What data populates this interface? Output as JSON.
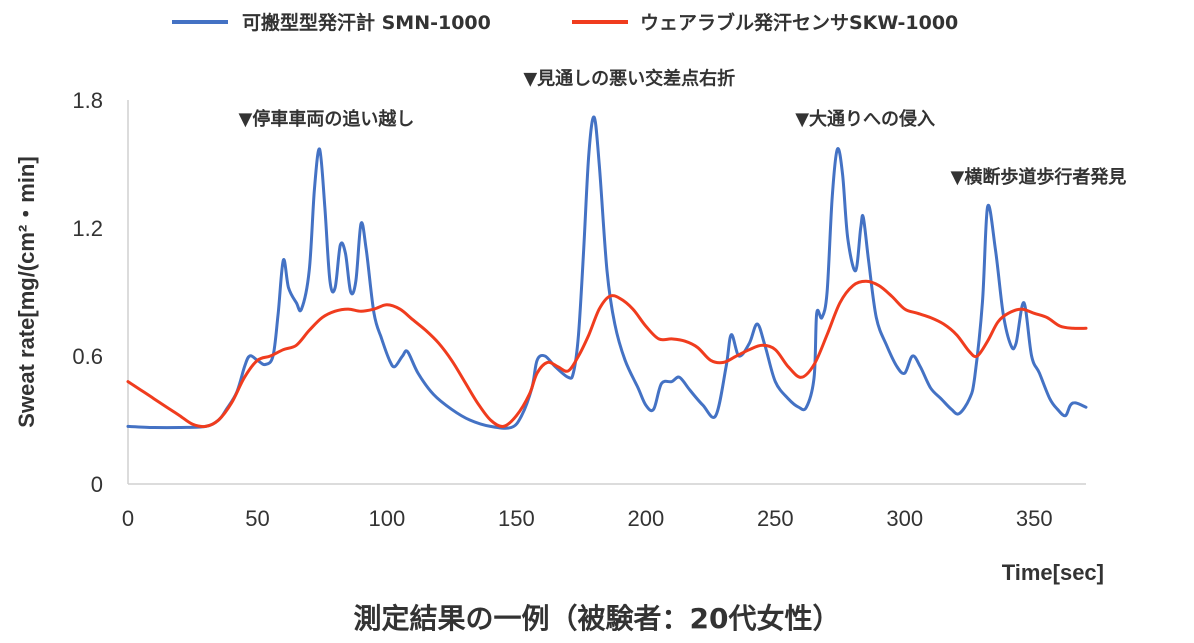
{
  "chart_data": {
    "type": "line",
    "caption": "測定結果の一例（被験者：20代女性）",
    "xlabel": "Time[sec]",
    "ylabel": "Sweat rate[mg/(cm²・min]",
    "xlim": [
      0,
      370
    ],
    "ylim": [
      0,
      1.8
    ],
    "x_ticks": [
      0,
      50,
      100,
      150,
      200,
      250,
      300,
      350
    ],
    "y_ticks": [
      0,
      0.6,
      1.2,
      1.8
    ],
    "y_tick_labels": [
      "0",
      "0.6",
      "1.2",
      "1.8"
    ],
    "legend_position": "top",
    "series": [
      {
        "name": "可搬型型発汗計 SMN-1000",
        "color": "#4472C4",
        "points": [
          [
            0,
            0.27
          ],
          [
            10,
            0.265
          ],
          [
            20,
            0.265
          ],
          [
            30,
            0.27
          ],
          [
            35,
            0.3
          ],
          [
            38,
            0.35
          ],
          [
            42,
            0.43
          ],
          [
            45,
            0.55
          ],
          [
            47,
            0.6
          ],
          [
            50,
            0.58
          ],
          [
            53,
            0.56
          ],
          [
            56,
            0.6
          ],
          [
            58,
            0.8
          ],
          [
            60,
            1.05
          ],
          [
            62,
            0.92
          ],
          [
            65,
            0.85
          ],
          [
            67,
            0.82
          ],
          [
            70,
            1.0
          ],
          [
            72,
            1.38
          ],
          [
            74,
            1.57
          ],
          [
            76,
            1.3
          ],
          [
            78,
            0.95
          ],
          [
            80,
            0.92
          ],
          [
            82,
            1.12
          ],
          [
            84,
            1.08
          ],
          [
            86,
            0.9
          ],
          [
            88,
            0.95
          ],
          [
            90,
            1.22
          ],
          [
            92,
            1.1
          ],
          [
            95,
            0.8
          ],
          [
            98,
            0.68
          ],
          [
            101,
            0.58
          ],
          [
            103,
            0.55
          ],
          [
            106,
            0.6
          ],
          [
            108,
            0.62
          ],
          [
            112,
            0.52
          ],
          [
            118,
            0.42
          ],
          [
            125,
            0.35
          ],
          [
            132,
            0.3
          ],
          [
            140,
            0.27
          ],
          [
            148,
            0.265
          ],
          [
            152,
            0.32
          ],
          [
            156,
            0.45
          ],
          [
            158,
            0.58
          ],
          [
            161,
            0.6
          ],
          [
            165,
            0.55
          ],
          [
            170,
            0.5
          ],
          [
            172,
            0.52
          ],
          [
            174,
            0.7
          ],
          [
            176,
            1.1
          ],
          [
            178,
            1.55
          ],
          [
            180,
            1.72
          ],
          [
            182,
            1.5
          ],
          [
            185,
            1.0
          ],
          [
            188,
            0.75
          ],
          [
            192,
            0.58
          ],
          [
            197,
            0.45
          ],
          [
            200,
            0.37
          ],
          [
            203,
            0.35
          ],
          [
            206,
            0.47
          ],
          [
            210,
            0.48
          ],
          [
            213,
            0.5
          ],
          [
            217,
            0.44
          ],
          [
            222,
            0.37
          ],
          [
            227,
            0.32
          ],
          [
            231,
            0.55
          ],
          [
            233,
            0.7
          ],
          [
            236,
            0.6
          ],
          [
            240,
            0.66
          ],
          [
            243,
            0.75
          ],
          [
            246,
            0.65
          ],
          [
            250,
            0.48
          ],
          [
            255,
            0.4
          ],
          [
            259,
            0.36
          ],
          [
            262,
            0.36
          ],
          [
            265,
            0.5
          ],
          [
            266,
            0.8
          ],
          [
            268,
            0.78
          ],
          [
            270,
            0.9
          ],
          [
            272,
            1.35
          ],
          [
            274,
            1.57
          ],
          [
            276,
            1.45
          ],
          [
            278,
            1.15
          ],
          [
            281,
            1.0
          ],
          [
            283,
            1.2
          ],
          [
            284,
            1.25
          ],
          [
            286,
            1.05
          ],
          [
            289,
            0.78
          ],
          [
            293,
            0.65
          ],
          [
            297,
            0.55
          ],
          [
            300,
            0.52
          ],
          [
            303,
            0.6
          ],
          [
            306,
            0.55
          ],
          [
            310,
            0.45
          ],
          [
            314,
            0.4
          ],
          [
            318,
            0.35
          ],
          [
            321,
            0.33
          ],
          [
            325,
            0.4
          ],
          [
            327,
            0.5
          ],
          [
            330,
            0.85
          ],
          [
            332,
            1.3
          ],
          [
            335,
            1.1
          ],
          [
            338,
            0.8
          ],
          [
            341,
            0.65
          ],
          [
            343,
            0.66
          ],
          [
            346,
            0.85
          ],
          [
            349,
            0.6
          ],
          [
            352,
            0.52
          ],
          [
            356,
            0.4
          ],
          [
            359,
            0.35
          ],
          [
            362,
            0.32
          ],
          [
            364,
            0.37
          ],
          [
            366,
            0.38
          ],
          [
            370,
            0.36
          ]
        ]
      },
      {
        "name": "ウェアラブル発汗センサSKW-1000",
        "color": "#F03C1E",
        "points": [
          [
            0,
            0.48
          ],
          [
            5,
            0.44
          ],
          [
            10,
            0.4
          ],
          [
            15,
            0.36
          ],
          [
            20,
            0.32
          ],
          [
            25,
            0.28
          ],
          [
            30,
            0.27
          ],
          [
            35,
            0.3
          ],
          [
            40,
            0.38
          ],
          [
            45,
            0.5
          ],
          [
            50,
            0.58
          ],
          [
            55,
            0.6
          ],
          [
            60,
            0.63
          ],
          [
            65,
            0.65
          ],
          [
            70,
            0.72
          ],
          [
            75,
            0.78
          ],
          [
            80,
            0.81
          ],
          [
            85,
            0.82
          ],
          [
            90,
            0.81
          ],
          [
            95,
            0.82
          ],
          [
            100,
            0.84
          ],
          [
            105,
            0.82
          ],
          [
            110,
            0.77
          ],
          [
            115,
            0.72
          ],
          [
            120,
            0.66
          ],
          [
            125,
            0.58
          ],
          [
            130,
            0.48
          ],
          [
            135,
            0.38
          ],
          [
            140,
            0.3
          ],
          [
            145,
            0.27
          ],
          [
            150,
            0.32
          ],
          [
            155,
            0.42
          ],
          [
            158,
            0.52
          ],
          [
            162,
            0.57
          ],
          [
            166,
            0.55
          ],
          [
            170,
            0.53
          ],
          [
            174,
            0.6
          ],
          [
            178,
            0.7
          ],
          [
            182,
            0.82
          ],
          [
            186,
            0.88
          ],
          [
            190,
            0.87
          ],
          [
            195,
            0.82
          ],
          [
            200,
            0.74
          ],
          [
            205,
            0.68
          ],
          [
            210,
            0.68
          ],
          [
            215,
            0.67
          ],
          [
            220,
            0.64
          ],
          [
            225,
            0.58
          ],
          [
            230,
            0.57
          ],
          [
            235,
            0.6
          ],
          [
            240,
            0.63
          ],
          [
            245,
            0.65
          ],
          [
            250,
            0.63
          ],
          [
            255,
            0.55
          ],
          [
            260,
            0.5
          ],
          [
            265,
            0.56
          ],
          [
            270,
            0.7
          ],
          [
            275,
            0.85
          ],
          [
            280,
            0.93
          ],
          [
            285,
            0.95
          ],
          [
            290,
            0.93
          ],
          [
            295,
            0.88
          ],
          [
            300,
            0.82
          ],
          [
            305,
            0.8
          ],
          [
            310,
            0.78
          ],
          [
            315,
            0.75
          ],
          [
            320,
            0.7
          ],
          [
            325,
            0.62
          ],
          [
            328,
            0.6
          ],
          [
            332,
            0.67
          ],
          [
            336,
            0.76
          ],
          [
            340,
            0.8
          ],
          [
            345,
            0.82
          ],
          [
            350,
            0.8
          ],
          [
            355,
            0.78
          ],
          [
            360,
            0.74
          ],
          [
            365,
            0.73
          ],
          [
            370,
            0.73
          ]
        ]
      }
    ],
    "annotations": [
      {
        "text": "▼停車車両の追い越し",
        "x": 45,
        "y": 1.71
      },
      {
        "text": "▼見通しの悪い交差点右折",
        "x": 155,
        "y": 1.9
      },
      {
        "text": "▼大通りへの侵入",
        "x": 260,
        "y": 1.71
      },
      {
        "text": "▼横断歩道歩行者発見",
        "x": 320,
        "y": 1.44
      }
    ]
  }
}
